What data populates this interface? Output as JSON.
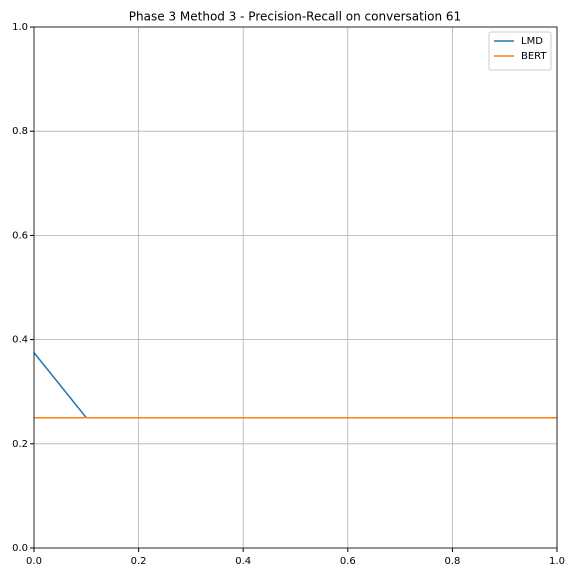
{
  "chart_data": {
    "type": "line",
    "title": "Phase 3 Method 3 - Precision-Recall on conversation 61",
    "x": [
      0,
      0.1,
      0.2,
      0.3,
      0.4,
      0.5,
      0.6,
      0.7,
      0.8,
      0.9,
      1
    ],
    "series": [
      {
        "name": "LMD",
        "color": "#1f77b4",
        "values": [
          0.375,
          0.25,
          0.25,
          0.25,
          0.25,
          0.25,
          0.25,
          0.25,
          0.25,
          0.25,
          0.25
        ]
      },
      {
        "name": "BERT",
        "color": "#ff7f0e",
        "values": [
          0.25,
          0.25,
          0.25,
          0.25,
          0.25,
          0.25,
          0.25,
          0.25,
          0.25,
          0.25,
          0.25
        ]
      }
    ],
    "xlim": [
      0,
      1
    ],
    "ylim": [
      0,
      1
    ],
    "xticks": [
      {
        "value": 0,
        "label": "0.0"
      },
      0.2,
      0.4,
      0.6,
      0.8,
      {
        "value": 1,
        "label": "1.0"
      }
    ],
    "yticks": [
      {
        "value": 0,
        "label": "0.0"
      },
      0.2,
      0.4,
      0.6,
      0.8,
      {
        "value": 1,
        "label": "1.0"
      }
    ],
    "grid": true,
    "legend": "upper right"
  }
}
